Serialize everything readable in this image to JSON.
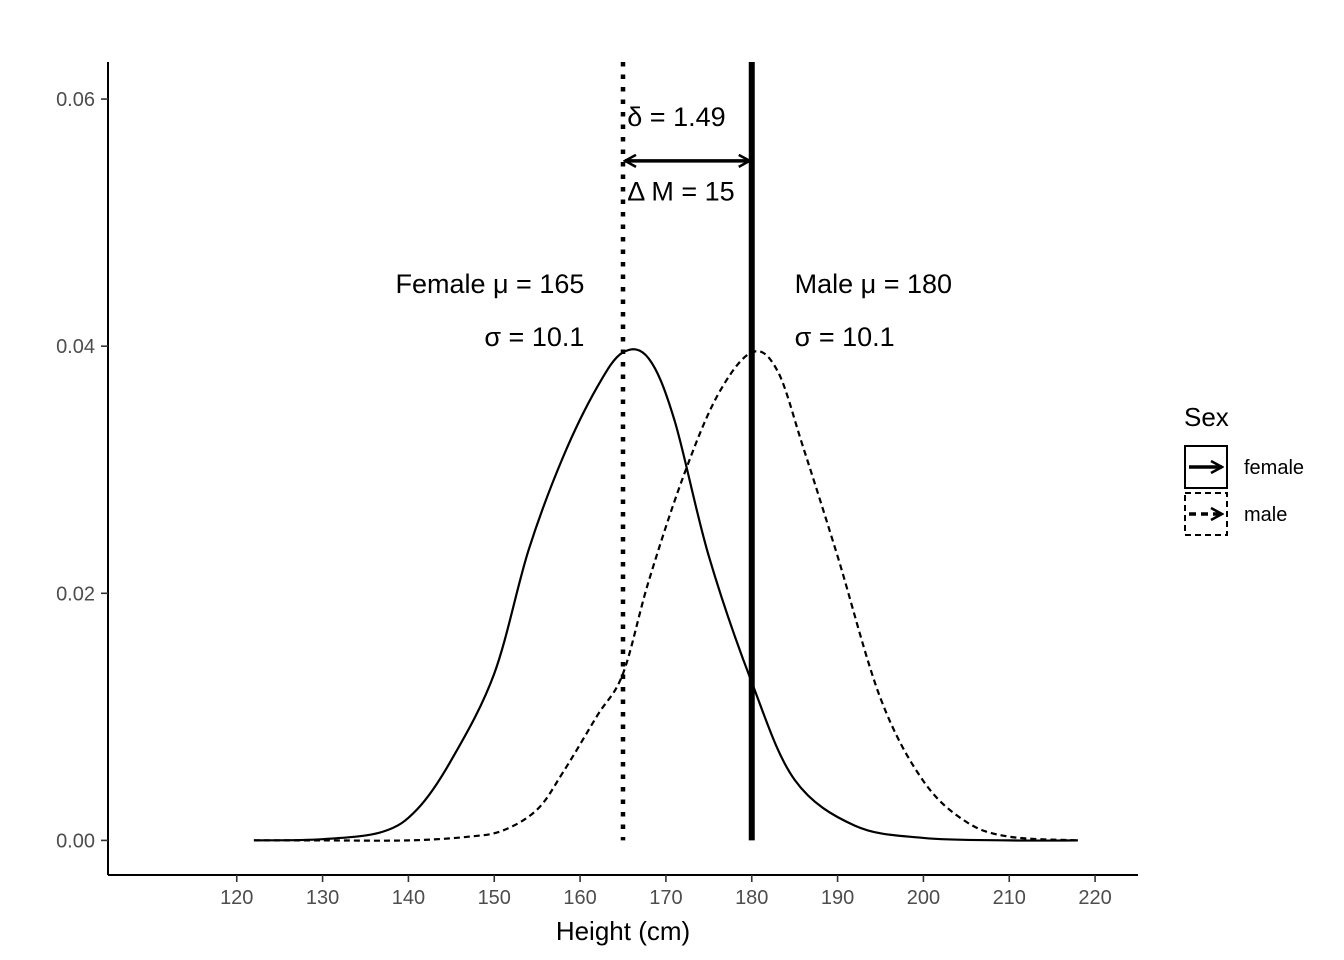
{
  "chart_data": {
    "type": "line",
    "xlabel": "Height (cm)",
    "ylabel": "",
    "xlim": [
      105,
      225
    ],
    "ylim": [
      -0.0028,
      0.063
    ],
    "xticks": [
      120,
      130,
      140,
      150,
      160,
      170,
      180,
      190,
      200,
      210,
      220
    ],
    "yticks": [
      0,
      0.02,
      0.04,
      0.06
    ],
    "ytick_labels": [
      "0.00",
      "0.02",
      "0.04",
      "0.06"
    ],
    "xtick_labels": [
      "120",
      "130",
      "140",
      "150",
      "160",
      "170",
      "180",
      "190",
      "200",
      "210",
      "220"
    ],
    "grid": false,
    "legend": {
      "title": "Sex",
      "position": "right",
      "entries": [
        "female",
        "male"
      ]
    },
    "series": [
      {
        "name": "female",
        "linetype": "solid",
        "x": [
          122,
          130,
          137,
          141,
          145,
          150,
          154,
          158,
          162,
          165,
          168,
          171,
          175,
          180,
          185,
          192,
          200,
          210,
          218
        ],
        "y": [
          0.0,
          0.0001,
          0.0007,
          0.0025,
          0.0065,
          0.0135,
          0.0235,
          0.031,
          0.0367,
          0.0395,
          0.039,
          0.034,
          0.023,
          0.0128,
          0.0049,
          0.0012,
          0.0002,
          0.0,
          0.0
        ]
      },
      {
        "name": "male",
        "linetype": "dashed",
        "x": [
          122,
          130,
          140,
          147,
          151,
          155,
          158,
          162,
          165,
          168,
          172,
          176,
          180,
          183,
          186,
          190,
          195,
          200,
          205,
          210,
          218
        ],
        "y": [
          0.0,
          0.0,
          0.0,
          0.0003,
          0.0008,
          0.0025,
          0.0055,
          0.0101,
          0.0135,
          0.021,
          0.0294,
          0.036,
          0.0395,
          0.038,
          0.0318,
          0.023,
          0.0115,
          0.0048,
          0.0015,
          0.0003,
          0.0
        ]
      }
    ],
    "reference_lines": [
      {
        "name": "female-mean",
        "x": 165,
        "style": "dotted"
      },
      {
        "name": "male-mean",
        "x": 180,
        "style": "solid"
      }
    ],
    "arrow": {
      "x_from": 165,
      "x_to": 180,
      "y": 0.055
    },
    "annotations": [
      {
        "key": "delta",
        "text": "δ = 1.49",
        "x": 165.5,
        "y": 0.0578,
        "anchor": "start"
      },
      {
        "key": "diff",
        "text": "Δ M = 15",
        "x": 165.5,
        "y": 0.0518,
        "anchor": "start"
      },
      {
        "key": "female_mu",
        "text": "Female μ = 165",
        "x": 160.5,
        "y": 0.0443,
        "anchor": "end"
      },
      {
        "key": "female_sigma",
        "text": "σ = 10.1",
        "x": 160.5,
        "y": 0.04,
        "anchor": "end"
      },
      {
        "key": "male_mu",
        "text": "Male μ = 180",
        "x": 185,
        "y": 0.0443,
        "anchor": "start"
      },
      {
        "key": "male_sigma",
        "text": "σ = 10.1",
        "x": 185,
        "y": 0.04,
        "anchor": "start"
      }
    ]
  }
}
